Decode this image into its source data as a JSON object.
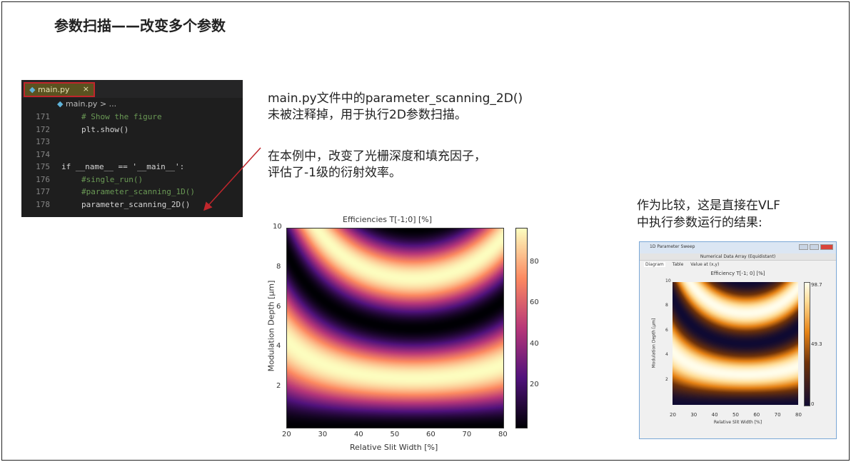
{
  "slide_title": "参数扫描——改变多个参数",
  "editor": {
    "tab_label": "main.py",
    "close_icon": "×",
    "breadcrumb": "main.py > ...",
    "lines": [
      {
        "num": "171",
        "code": "# Show the figure",
        "kind": "comment"
      },
      {
        "num": "172",
        "code": "plt.show()",
        "kind": "normal"
      },
      {
        "num": "173",
        "code": "",
        "kind": "normal"
      },
      {
        "num": "174",
        "code": "",
        "kind": "normal"
      },
      {
        "num": "175",
        "code": "if __name__ == '__main__':",
        "kind": "main"
      },
      {
        "num": "176",
        "code": "#single_run()",
        "kind": "comment"
      },
      {
        "num": "177",
        "code": "#parameter_scanning_1D()",
        "kind": "comment"
      },
      {
        "num": "178",
        "code": "parameter_scanning_2D()",
        "kind": "normal"
      }
    ]
  },
  "text": {
    "p1_l1": "main.py文件中的parameter_scanning_2D()",
    "p1_l2": "未被注释掉，用于执行2D参数扫描。",
    "p2_l1": "在本例中，改变了光栅深度和填充因子，",
    "p2_l2": "评估了-1级的衍射效率。",
    "p3_l1": "作为比较，这是直接在VLF",
    "p3_l2": "中执行参数运行的结果:"
  },
  "accent_color": "#c0262c",
  "chart_data": [
    {
      "type": "heatmap",
      "title": "Efficiencies T[-1;0] [%]",
      "xlabel": "Relative Slit Width [%]",
      "ylabel": "Modulation Depth [µm]",
      "xlim": [
        20,
        80
      ],
      "ylim": [
        0,
        10
      ],
      "xticks": [
        "20",
        "30",
        "40",
        "50",
        "60",
        "70",
        "80"
      ],
      "yticks": [
        "2",
        "4",
        "6",
        "8",
        "10"
      ],
      "colorbar": {
        "range": [
          0,
          97
        ],
        "ticks": [
          "20",
          "40",
          "60",
          "80"
        ],
        "colormap": "magma"
      }
    },
    {
      "type": "heatmap",
      "window_title": "1D Parameter Sweep",
      "subtitle": "Numerical Data Array (Equidistant)",
      "tabs": [
        "Diagram",
        "Table",
        "Value at (x,y)"
      ],
      "title": "Efficiency T[-1; 0]  [%]",
      "xlabel": "Relative Slit Width [%]",
      "ylabel": "Modulation Depth [µm]",
      "xlim": [
        20,
        80
      ],
      "ylim": [
        0,
        10
      ],
      "xticks": [
        "20",
        "30",
        "40",
        "50",
        "60",
        "70",
        "80"
      ],
      "yticks": [
        "2",
        "4",
        "6",
        "8",
        "10"
      ],
      "colorbar": {
        "range": [
          0,
          98.7
        ],
        "ticks": [
          "98.7",
          "49.3",
          "0"
        ],
        "colormap": "dark-orange-yellow"
      }
    }
  ]
}
